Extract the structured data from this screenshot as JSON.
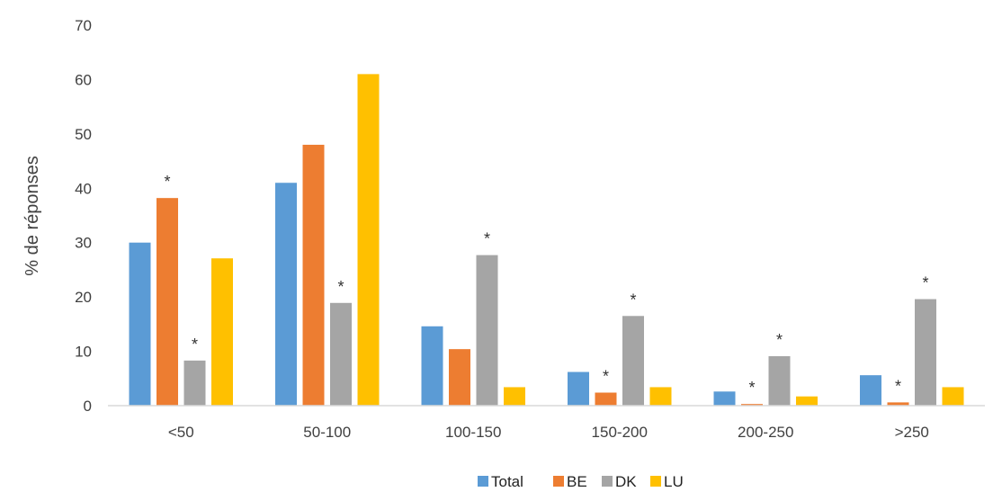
{
  "chart_data": {
    "type": "bar",
    "title": "",
    "xlabel": "",
    "ylabel": "% de réponses",
    "ylim": [
      0,
      70
    ],
    "yticks": [
      "0",
      "10",
      "20",
      "30",
      "40",
      "50",
      "60",
      "70"
    ],
    "grid": false,
    "legend_position": "bottom",
    "categories": [
      "<50",
      "50-100",
      "100-150",
      "150-200",
      "200-250",
      ">250"
    ],
    "series": [
      {
        "name": "Total",
        "color": "#5B9BD5",
        "values": [
          30,
          41,
          14.6,
          6.2,
          2.6,
          5.6
        ],
        "stars": [
          false,
          false,
          false,
          false,
          false,
          false
        ]
      },
      {
        "name": "BE",
        "color": "#ED7D31",
        "values": [
          38.2,
          48,
          10.4,
          2.4,
          0.3,
          0.6
        ],
        "stars": [
          true,
          false,
          false,
          true,
          true,
          true
        ]
      },
      {
        "name": "DK",
        "color": "#A5A5A5",
        "values": [
          8.3,
          18.9,
          27.7,
          16.5,
          9.1,
          19.6
        ],
        "stars": [
          true,
          true,
          true,
          true,
          true,
          true
        ]
      },
      {
        "name": "LU",
        "color": "#FFC000",
        "values": [
          27.1,
          61,
          3.4,
          3.4,
          1.7,
          3.4
        ],
        "stars": [
          false,
          false,
          false,
          false,
          false,
          false
        ]
      }
    ],
    "annotation_symbol": "*"
  }
}
